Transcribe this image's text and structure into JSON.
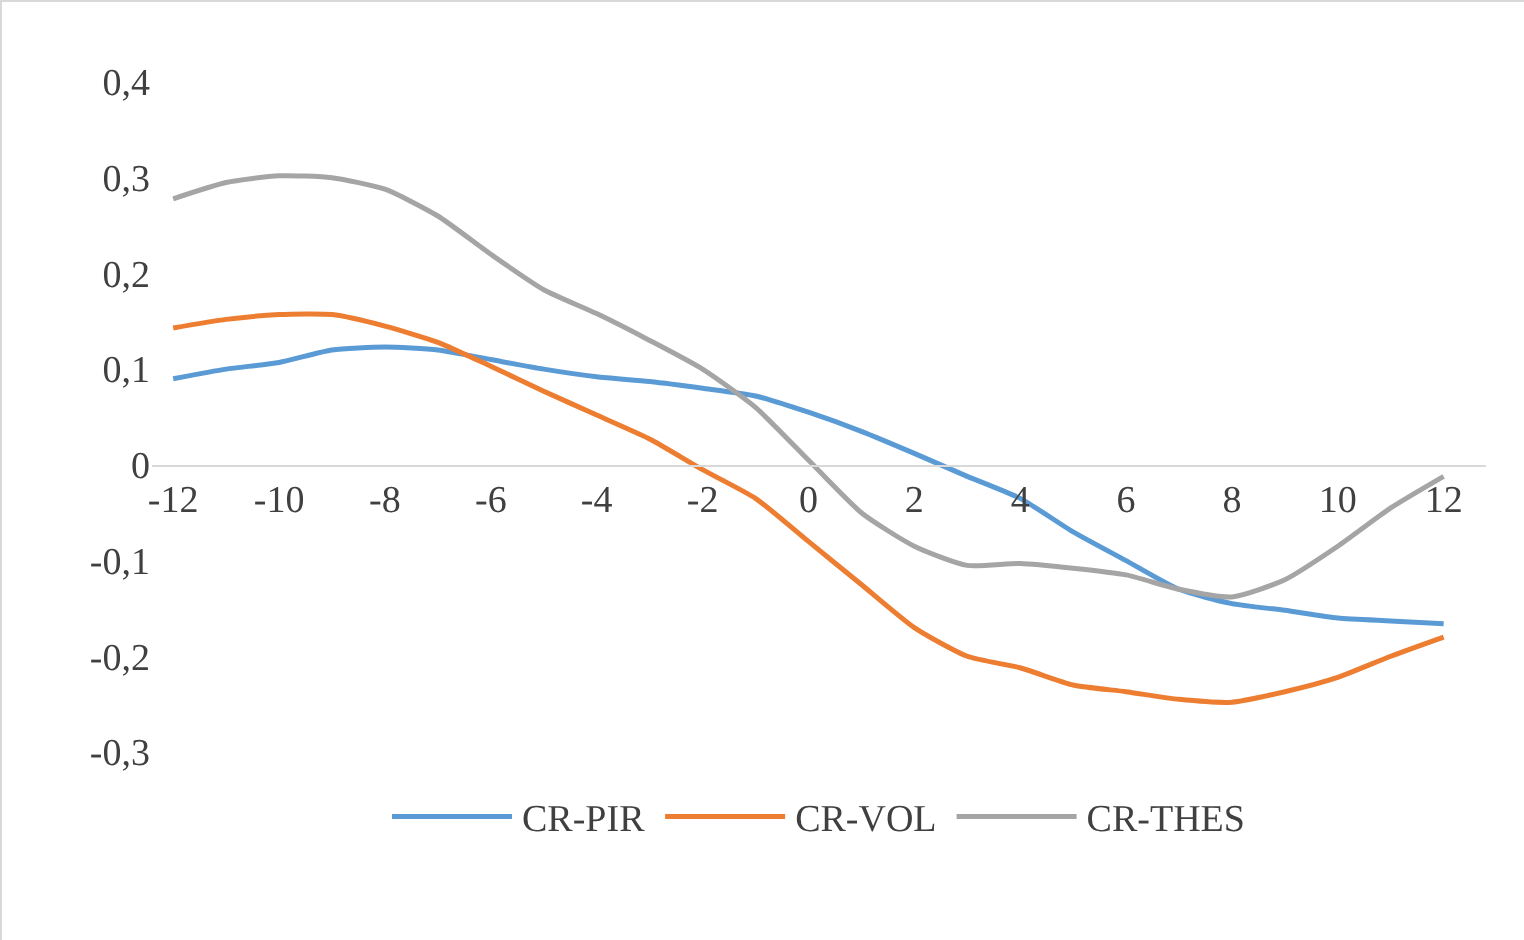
{
  "chart_data": {
    "type": "line",
    "x": [
      -12,
      -11,
      -10,
      -9,
      -8,
      -7,
      -6,
      -5,
      -4,
      -3,
      -2,
      -1,
      0,
      1,
      2,
      3,
      4,
      5,
      6,
      7,
      8,
      9,
      10,
      11,
      12
    ],
    "series": [
      {
        "name": "CR-PIR",
        "color": "#5b9bd5",
        "values": [
          0.09,
          0.1,
          0.107,
          0.12,
          0.123,
          0.12,
          0.11,
          0.1,
          0.092,
          0.087,
          0.08,
          0.072,
          0.055,
          0.035,
          0.012,
          -0.012,
          -0.035,
          -0.07,
          -0.1,
          -0.13,
          -0.145,
          -0.152,
          -0.16,
          -0.163,
          -0.166
        ]
      },
      {
        "name": "CR-VOL",
        "color": "#ed7d31",
        "values": [
          0.143,
          0.152,
          0.157,
          0.157,
          0.145,
          0.128,
          0.103,
          0.077,
          0.052,
          0.027,
          -0.005,
          -0.035,
          -0.08,
          -0.125,
          -0.17,
          -0.2,
          -0.212,
          -0.23,
          -0.237,
          -0.245,
          -0.248,
          -0.237,
          -0.222,
          -0.2,
          -0.18
        ]
      },
      {
        "name": "CR-THES",
        "color": "#a5a5a5",
        "values": [
          0.278,
          0.295,
          0.302,
          0.3,
          0.288,
          0.26,
          0.22,
          0.183,
          0.158,
          0.13,
          0.1,
          0.06,
          0.005,
          -0.05,
          -0.085,
          -0.105,
          -0.103,
          -0.108,
          -0.115,
          -0.13,
          -0.138,
          -0.12,
          -0.085,
          -0.045,
          -0.012
        ]
      }
    ],
    "xlim": [
      -12.4,
      12.8
    ],
    "xticks": [
      -12,
      -10,
      -8,
      -6,
      -4,
      -2,
      0,
      2,
      4,
      6,
      8,
      10,
      12
    ],
    "ylim": [
      -0.3,
      0.4
    ],
    "yticks": [
      {
        "value": -0.3,
        "label": "-0,3"
      },
      {
        "value": -0.2,
        "label": "-0,2"
      },
      {
        "value": -0.1,
        "label": "-0,1"
      },
      0,
      {
        "value": 0.1,
        "label": "0,1"
      },
      {
        "value": 0.2,
        "label": "0,2"
      },
      {
        "value": 0.3,
        "label": "0,3"
      },
      {
        "value": 0.4,
        "label": "0,4"
      }
    ],
    "grid": false,
    "legend": "bottom",
    "marker": "none",
    "line_style": "solid"
  }
}
